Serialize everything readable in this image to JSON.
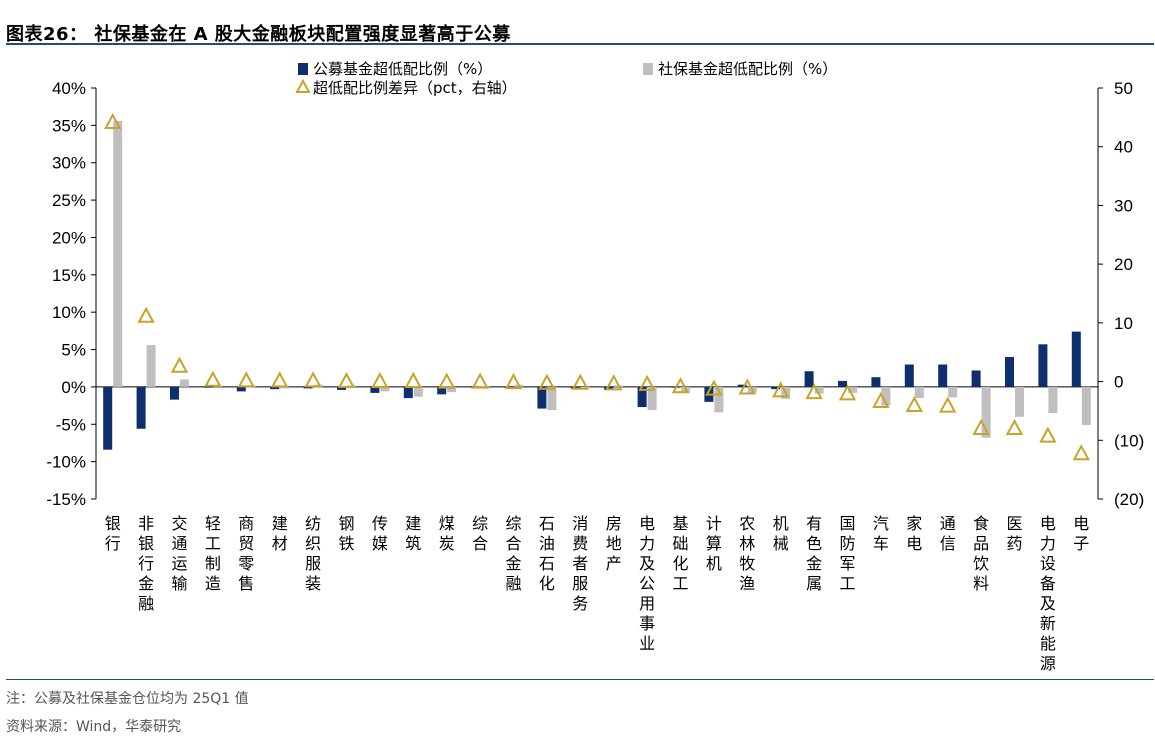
{
  "header": {
    "title": "图表26：  社保基金在 A 股大金融板块配置强度显著高于公募"
  },
  "footer": {
    "note": "注：公募及社保基金仓位均为 25Q1 值",
    "source": "资料来源：Wind，华泰研究"
  },
  "colors": {
    "public": "#0d2f6e",
    "social": "#bfbfbf",
    "diff": "#c9a227",
    "axis": "#000000"
  },
  "chart_data": {
    "type": "bar",
    "title": "社保基金在 A 股大金融板块配置强度显著高于公募",
    "legend": [
      {
        "name": "公募基金超低配比例（%）",
        "marker": "bar"
      },
      {
        "name": "社保基金超低配比例（%）",
        "marker": "bar"
      },
      {
        "name": "超低配比例差异（pct，右轴）",
        "marker": "triangle"
      }
    ],
    "categories": [
      "银行",
      "非银行金融",
      "交通运输",
      "轻工制造",
      "商贸零售",
      "建材",
      "纺织服装",
      "钢铁",
      "传媒",
      "建筑",
      "煤炭",
      "综合",
      "综合金融",
      "石油石化",
      "消费者服务",
      "房地产",
      "电力及公用事业",
      "基础化工",
      "计算机",
      "农林牧渔",
      "机械",
      "有色金属",
      "国防军工",
      "汽车",
      "家电",
      "通信",
      "食品饮料",
      "医药",
      "电力设备及新能源",
      "电子"
    ],
    "series": [
      {
        "name": "公募基金超低配比例（%）",
        "axis": "left",
        "values": [
          -8.4,
          -5.6,
          -1.7,
          -0.1,
          -0.6,
          -0.3,
          -0.2,
          -0.4,
          -0.8,
          -1.5,
          -1.0,
          -0.1,
          -0.1,
          -2.9,
          -0.2,
          -0.4,
          -2.7,
          -0.1,
          -2.0,
          0.3,
          -0.3,
          2.1,
          0.8,
          1.3,
          3.0,
          3.0,
          2.2,
          4.0,
          5.7,
          7.4
        ]
      },
      {
        "name": "社保基金超低配比例（%）",
        "axis": "left",
        "values": [
          35.6,
          5.6,
          1.0,
          0.2,
          0.2,
          -0.2,
          0.3,
          0.2,
          -0.6,
          -1.3,
          -0.7,
          0.1,
          0.3,
          -3.1,
          -0.1,
          0.2,
          -3.1,
          -0.8,
          -3.4,
          -0.8,
          -1.6,
          -0.9,
          -0.8,
          -2.5,
          -1.5,
          -1.4,
          -6.8,
          -4.0,
          -3.5,
          -5.1
        ]
      },
      {
        "name": "超低配比例差异（pct，右轴）",
        "axis": "right",
        "values": [
          44.2,
          11.2,
          2.7,
          0.3,
          0.2,
          0.2,
          0.2,
          0.1,
          0.1,
          0.1,
          0.0,
          0.0,
          -0.1,
          -0.2,
          -0.2,
          -0.3,
          -0.4,
          -0.8,
          -1.2,
          -1.0,
          -1.5,
          -1.8,
          -2.0,
          -3.3,
          -4.0,
          -4.1,
          -7.9,
          -7.9,
          -9.2,
          -12.2
        ]
      }
    ],
    "y_left": {
      "min": -15,
      "max": 40,
      "step": 5,
      "tick_labels": [
        "-15%",
        "-10%",
        "-5%",
        "0%",
        "5%",
        "10%",
        "15%",
        "20%",
        "25%",
        "30%",
        "35%",
        "40%"
      ]
    },
    "y_right": {
      "min": -20,
      "max": 50,
      "step": 10,
      "tick_labels": [
        "(20)",
        "(10)",
        "0",
        "10",
        "20",
        "30",
        "40",
        "50"
      ]
    },
    "legend_position": "top-center"
  }
}
